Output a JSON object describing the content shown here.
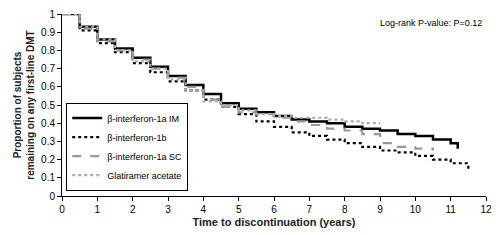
{
  "chart_data": {
    "type": "line",
    "x_label": "Time to discontinuation (years)",
    "y_label": "Proportion of subjects remaining on any first-line DMT",
    "annotation": "Log-rank P-value: P=0.12",
    "xlim": [
      0,
      12
    ],
    "xticks": [
      0,
      1,
      2,
      3,
      4,
      5,
      6,
      7,
      8,
      9,
      10,
      11,
      12
    ],
    "ylim": [
      0,
      1
    ],
    "yticks": [
      0,
      0.1,
      0.2,
      0.3,
      0.4,
      0.5,
      0.6,
      0.7,
      0.8,
      0.9,
      1
    ],
    "grid": false,
    "legend": "lower left",
    "series": [
      {
        "name": "β-interferon-1a IM",
        "color": "#000000",
        "line_style": "solid",
        "x": [
          0,
          0.5,
          1,
          1.5,
          2,
          2.5,
          3,
          3.5,
          4,
          4.5,
          5,
          5.5,
          6,
          6.5,
          7,
          7.5,
          8,
          8.5,
          9,
          9.5,
          10,
          10.5,
          11,
          11.2
        ],
        "values": [
          1,
          0.93,
          0.86,
          0.81,
          0.76,
          0.71,
          0.66,
          0.61,
          0.56,
          0.51,
          0.48,
          0.46,
          0.44,
          0.42,
          0.41,
          0.4,
          0.38,
          0.37,
          0.36,
          0.34,
          0.33,
          0.31,
          0.29,
          0.26
        ]
      },
      {
        "name": "β-interferon-1b",
        "color": "#000000",
        "line_style": "dot",
        "x": [
          0,
          0.5,
          1,
          1.5,
          2,
          2.5,
          3,
          3.5,
          4,
          4.5,
          5,
          5.5,
          6,
          6.5,
          7,
          7.5,
          8,
          8.5,
          9,
          9.5,
          10,
          10.5,
          11,
          11.5
        ],
        "values": [
          1,
          0.91,
          0.84,
          0.79,
          0.73,
          0.68,
          0.63,
          0.58,
          0.53,
          0.49,
          0.45,
          0.41,
          0.38,
          0.35,
          0.33,
          0.31,
          0.29,
          0.27,
          0.25,
          0.24,
          0.22,
          0.2,
          0.18,
          0.15
        ]
      },
      {
        "name": "β-interferon-1a SC",
        "color": "#999999",
        "line_style": "dash",
        "x": [
          0,
          0.5,
          1,
          1.5,
          2,
          2.5,
          3,
          3.5,
          4,
          4.5,
          5,
          5.5,
          6,
          6.5,
          7,
          7.5,
          8,
          8.5,
          9,
          9.5,
          10,
          10.5
        ],
        "values": [
          1,
          0.92,
          0.85,
          0.8,
          0.75,
          0.7,
          0.65,
          0.6,
          0.53,
          0.49,
          0.46,
          0.45,
          0.43,
          0.41,
          0.39,
          0.37,
          0.36,
          0.34,
          0.29,
          0.27,
          0.26,
          0.25
        ]
      },
      {
        "name": "Glatiramer acetate",
        "color": "#aaaaaa",
        "line_style": "dot",
        "x": [
          0,
          0.5,
          1,
          1.5,
          2,
          2.5,
          3,
          3.5,
          4,
          4.5,
          5,
          5.5,
          6,
          6.5,
          7,
          7.5,
          8,
          8.5,
          9
        ],
        "values": [
          1,
          0.93,
          0.86,
          0.8,
          0.74,
          0.7,
          0.64,
          0.58,
          0.52,
          0.5,
          0.47,
          0.45,
          0.44,
          0.43,
          0.43,
          0.42,
          0.41,
          0.4,
          0.4
        ]
      }
    ]
  }
}
